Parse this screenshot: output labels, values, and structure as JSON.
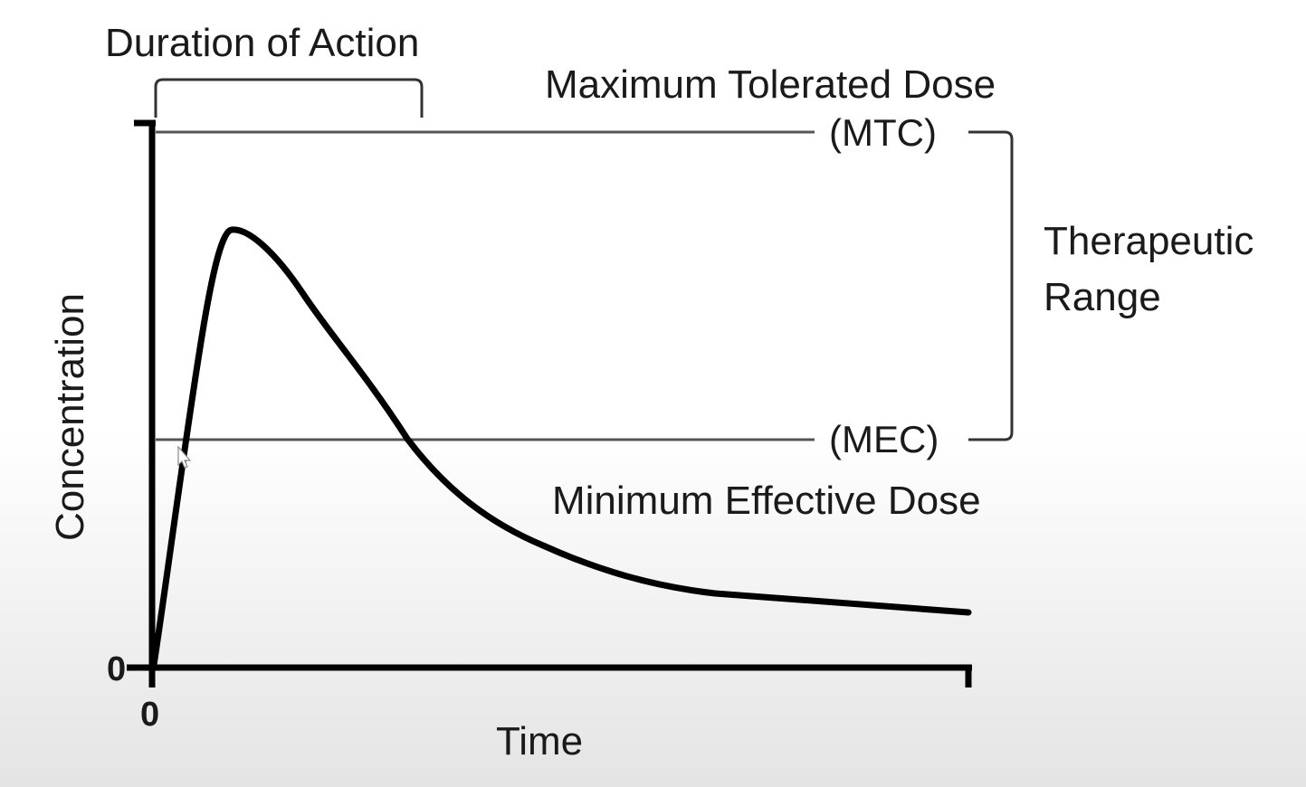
{
  "diagram": {
    "duration_label": "Duration of Action",
    "max_dose_label": "Maximum Tolerated Dose",
    "mtc_label": "(MTC)",
    "mec_label": "(MEC)",
    "min_dose_label": "Minimum Effective Dose",
    "therapeutic_line1": "Therapeutic",
    "therapeutic_line2": "Range",
    "y_axis_label": "Concentration",
    "x_axis_label": "Time",
    "y_zero_label": "0",
    "x_zero_label": "0"
  },
  "colors": {
    "curve": "#000000",
    "axis": "#000000",
    "threshold_line": "#555555",
    "text": "#1a1a1a",
    "bottom_fade": "#e4e4e4"
  }
}
